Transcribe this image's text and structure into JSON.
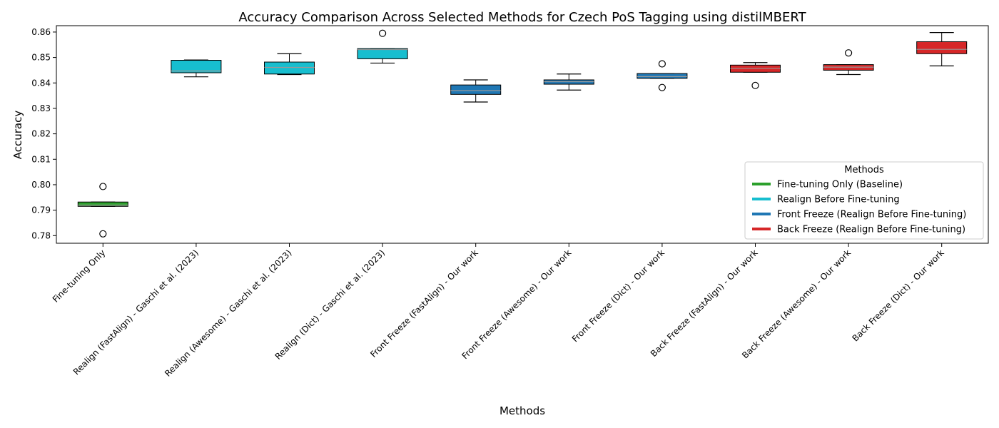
{
  "chart_data": {
    "type": "box",
    "title": "Accuracy Comparison Across Selected Methods for Czech PoS Tagging using distilMBERT",
    "xlabel": "Methods",
    "ylabel": "Accuracy",
    "ylim": [
      0.777,
      0.8625
    ],
    "yticks": [
      "0.78",
      "0.79",
      "0.80",
      "0.81",
      "0.82",
      "0.83",
      "0.84",
      "0.85",
      "0.86"
    ],
    "grid": false,
    "legend": {
      "title": "Methods",
      "placement": "lower-right",
      "entries": [
        {
          "label": "Fine-tuning Only (Baseline)",
          "color": "#2ca02c"
        },
        {
          "label": "Realign Before Fine-tuning",
          "color": "#17becf"
        },
        {
          "label": "Front Freeze (Realign Before Fine-tuning)",
          "color": "#1f77b4"
        },
        {
          "label": "Back Freeze (Realign Before Fine-tuning)",
          "color": "#d62728"
        }
      ]
    },
    "boxes": [
      {
        "category": "Fine-tuning Only",
        "group": 0,
        "whislo": 0.7915,
        "q1": 0.7915,
        "med": 0.792,
        "q3": 0.7932,
        "whishi": 0.7932,
        "fliers": [
          0.7993,
          0.7807
        ]
      },
      {
        "category": "Realign (FastAlign) - Gaschi et al. (2023)",
        "group": 1,
        "whislo": 0.8424,
        "q1": 0.844,
        "med": 0.8447,
        "q3": 0.8489,
        "whishi": 0.849,
        "fliers": []
      },
      {
        "category": "Realign (Awesome) - Gaschi et al. (2023)",
        "group": 1,
        "whislo": 0.8433,
        "q1": 0.8435,
        "med": 0.8461,
        "q3": 0.8482,
        "whishi": 0.8515,
        "fliers": []
      },
      {
        "category": "Realign (Dict) - Gaschi et al. (2023)",
        "group": 1,
        "whislo": 0.8478,
        "q1": 0.8495,
        "med": 0.8531,
        "q3": 0.8535,
        "whishi": 0.8535,
        "fliers": [
          0.8595
        ]
      },
      {
        "category": "Front Freeze (FastAlign) - Our work",
        "group": 2,
        "whislo": 0.8325,
        "q1": 0.8355,
        "med": 0.837,
        "q3": 0.8392,
        "whishi": 0.8412,
        "fliers": []
      },
      {
        "category": "Front Freeze (Awesome) - Our work",
        "group": 2,
        "whislo": 0.8372,
        "q1": 0.8395,
        "med": 0.8405,
        "q3": 0.8412,
        "whishi": 0.8435,
        "fliers": []
      },
      {
        "category": "Front Freeze (Dict) - Our work",
        "group": 2,
        "whislo": 0.8418,
        "q1": 0.8418,
        "med": 0.8425,
        "q3": 0.8437,
        "whishi": 0.8437,
        "fliers": [
          0.8475,
          0.8382
        ]
      },
      {
        "category": "Back Freeze (FastAlign) - Our work",
        "group": 3,
        "whislo": 0.8442,
        "q1": 0.8442,
        "med": 0.8458,
        "q3": 0.847,
        "whishi": 0.848,
        "fliers": [
          0.839
        ]
      },
      {
        "category": "Back Freeze (Awesome) - Our work",
        "group": 3,
        "whislo": 0.8433,
        "q1": 0.845,
        "med": 0.8462,
        "q3": 0.8472,
        "whishi": 0.8472,
        "fliers": [
          0.8518
        ]
      },
      {
        "category": "Back Freeze (Dict) - Our work",
        "group": 3,
        "whislo": 0.8467,
        "q1": 0.8515,
        "med": 0.8532,
        "q3": 0.8562,
        "whishi": 0.8598,
        "fliers": []
      }
    ]
  }
}
